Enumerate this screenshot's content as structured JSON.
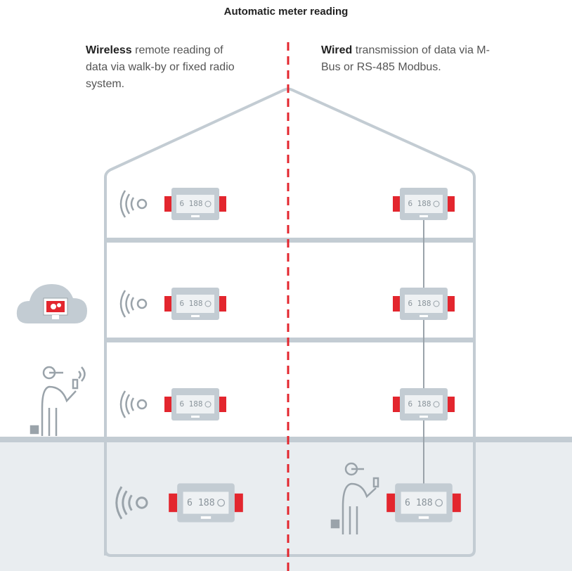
{
  "title": "Automatic meter reading",
  "wireless_note": {
    "bold": "Wireless",
    "text": "remote reading of data via walk-by or fixed radio system."
  },
  "wired_note": {
    "bold": "Wired",
    "text": "transmission of data via M-Bus or RS-485 Modbus."
  },
  "meters": [
    {
      "display": "6 188"
    },
    {
      "display": "6 188"
    },
    {
      "display": "6 188"
    },
    {
      "display": "6 188"
    },
    {
      "display": "6 188"
    },
    {
      "display": "6 188"
    },
    {
      "display": "6 188"
    },
    {
      "display": "6 188"
    }
  ]
}
